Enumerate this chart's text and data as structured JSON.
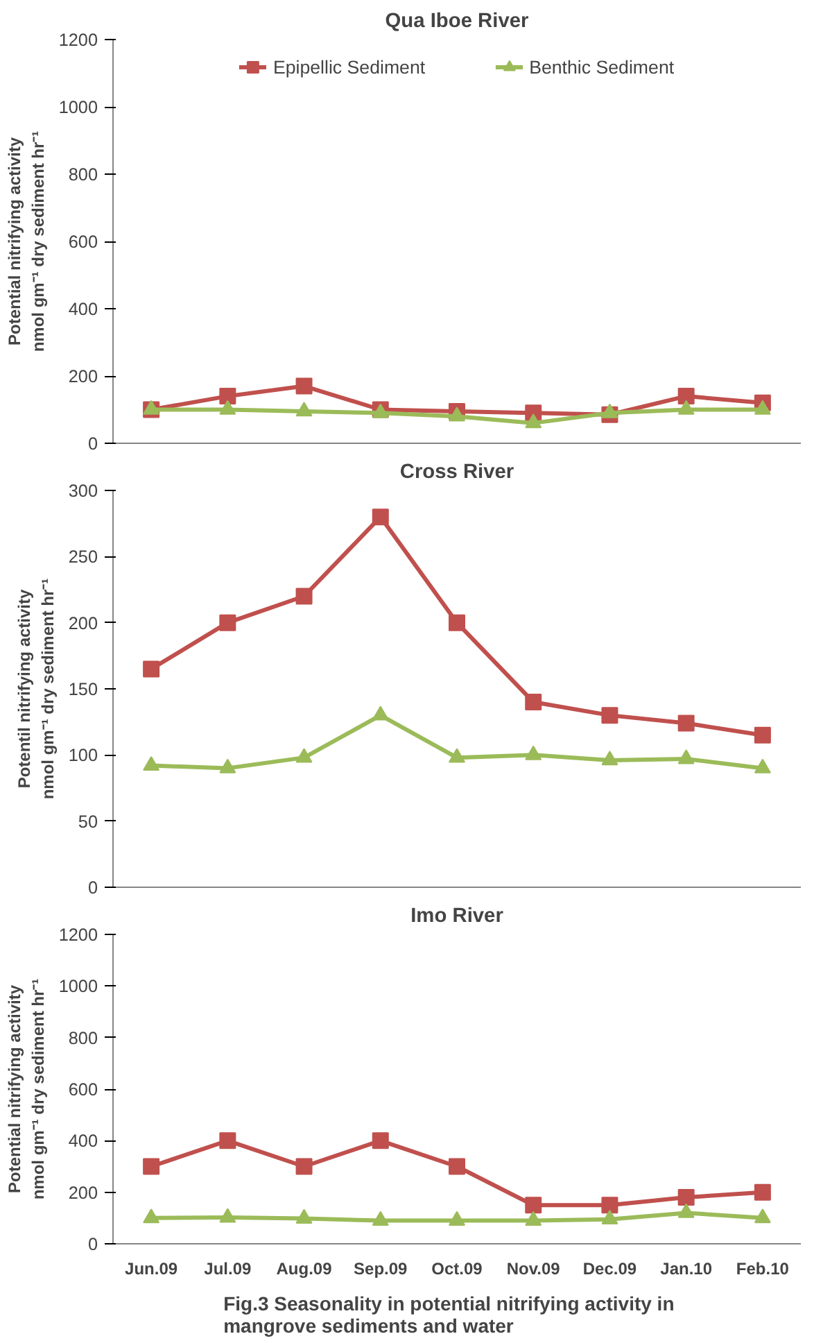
{
  "chart_data": [
    {
      "type": "line",
      "title": "Qua Iboe River",
      "ylabel": "Potential nitrifying activity\nnmol gm⁻¹ dry sediment hr⁻¹",
      "categories": [
        null,
        null,
        null,
        null,
        null,
        null,
        null,
        null,
        null
      ],
      "ylim": [
        0,
        1200
      ],
      "yticks": [
        0,
        200,
        400,
        600,
        800,
        1000,
        1200
      ],
      "grid": false,
      "legend": "top",
      "tick_labels": "y",
      "series": [
        {
          "name": "Epipellic Sediment",
          "color": "#c0504d",
          "marker": "square",
          "values": [
            100,
            140,
            170,
            100,
            95,
            90,
            85,
            140,
            120
          ]
        },
        {
          "name": "Benthic Sediment",
          "color": "#9bbb59",
          "marker": "triangle",
          "values": [
            100,
            100,
            95,
            90,
            80,
            60,
            90,
            100,
            100
          ]
        }
      ]
    },
    {
      "type": "line",
      "title": "Cross River",
      "ylabel": "Potentil nitrifying activity\nnmol gm⁻¹ dry sediment hr⁻¹",
      "categories": [
        null,
        null,
        null,
        null,
        null,
        null,
        null,
        null,
        null
      ],
      "ylim": [
        0,
        300
      ],
      "yticks": [
        0,
        50,
        100,
        150,
        200,
        250,
        300
      ],
      "grid": false,
      "tick_labels": "y",
      "series": [
        {
          "color": "#c0504d",
          "marker": "square",
          "values": [
            165,
            200,
            220,
            280,
            200,
            140,
            130,
            124,
            115
          ]
        },
        {
          "color": "#9bbb59",
          "marker": "triangle",
          "values": [
            92,
            90,
            98,
            130,
            98,
            100,
            96,
            97,
            90
          ]
        }
      ]
    },
    {
      "type": "line",
      "title": "Imo River",
      "ylabel": "Potential nitrifying activity\nnmol gm⁻¹ dry sediment hr⁻¹",
      "categories": [
        "Jun.09",
        "Jul.09",
        "Aug.09",
        "Sep.09",
        "Oct.09",
        "Nov.09",
        "Dec.09",
        "Jan.10",
        "Feb.10"
      ],
      "ylim": [
        0,
        1200
      ],
      "yticks": [
        0,
        200,
        400,
        600,
        800,
        1000,
        1200
      ],
      "grid": false,
      "annotations": [
        "Fig.3    Seasonality in potential nitrifying activity in\nmangrove sediments and water"
      ],
      "series": [
        {
          "color": "#c0504d",
          "marker": "square",
          "values": [
            300,
            400,
            300,
            400,
            300,
            150,
            150,
            180,
            200
          ]
        },
        {
          "color": "#9bbb59",
          "marker": "triangle",
          "values": [
            100,
            102,
            98,
            90,
            90,
            90,
            95,
            120,
            100
          ]
        }
      ]
    }
  ]
}
